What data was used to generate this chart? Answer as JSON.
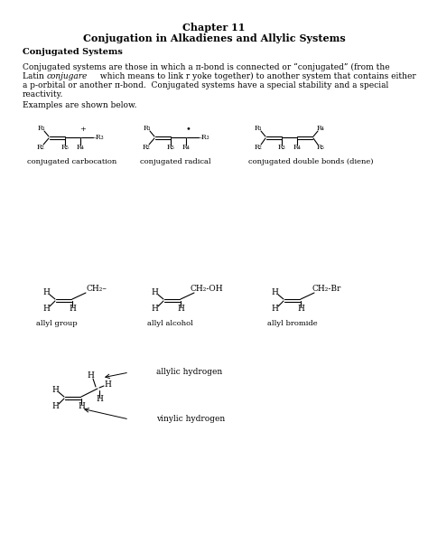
{
  "title_line1": "Chapter 11",
  "title_line2": "Conjugation in Alkadienes and Allylic Systems",
  "section_heading": "Conjugated Systems",
  "body_line1": "Conjugated systems are those in which a π-bond is connected or “conjugated” (from the",
  "body_line2": "Latin conjugare which means to link r yoke together) to another system that contains either",
  "body_line3": "a p-orbital or another π-bond.  Conjugated systems have a special stability and a special",
  "body_line4": "reactivity.",
  "examples_text": "Examples are shown below.",
  "label1": "conjugated carbocation",
  "label2": "conjugated radical",
  "label3": "conjugated double bonds (diene)",
  "label4": "allyl group",
  "label5": "allyl alcohol",
  "label6": "allyl bromide",
  "label7": "allylic hydrogen",
  "label8": "vinylic hydrogen",
  "bg_color": "#ffffff",
  "text_color": "#000000"
}
